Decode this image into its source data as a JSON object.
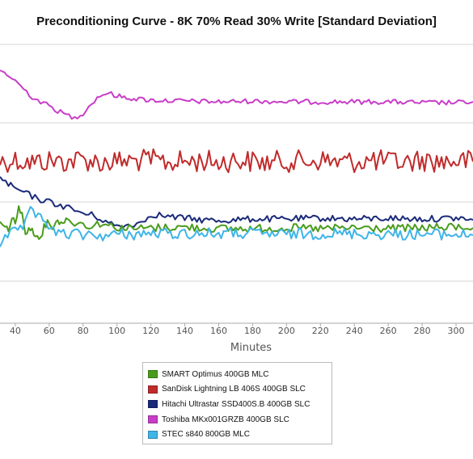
{
  "chart_data": {
    "type": "line",
    "title": "Preconditioning Curve - 8K 70% Read 30% Write [Standard Deviation]",
    "xlabel": "Minutes",
    "ylabel": "",
    "x_ticks": [
      40,
      60,
      80,
      100,
      120,
      140,
      160,
      180,
      200,
      220,
      240,
      260,
      280,
      300
    ],
    "xlim": [
      31,
      310
    ],
    "grid": "horizontal",
    "legend_position": "bottom",
    "series": [
      {
        "name": "SMART Optimus 400GB MLC",
        "color": "#4a9c1c",
        "x": [
          31,
          34,
          36,
          38,
          40,
          42,
          44,
          46,
          48,
          50,
          52,
          54,
          56,
          58,
          60,
          62,
          64,
          66,
          68,
          70,
          75,
          80,
          85,
          90,
          95,
          100,
          110,
          120,
          140,
          160,
          180,
          200,
          220,
          240,
          260,
          280,
          300,
          310
        ],
        "y": [
          275,
          283,
          282,
          272,
          275,
          255,
          268,
          290,
          278,
          286,
          293,
          291,
          287,
          277,
          275,
          280,
          276,
          273,
          274,
          273,
          275,
          277,
          280,
          276,
          279,
          281,
          283,
          282,
          281,
          283,
          283,
          282,
          283,
          282,
          283,
          282,
          281,
          282
        ]
      },
      {
        "name": "SanDisk Lightning LB 406S 400GB SLC",
        "color": "#c02b2b",
        "x": [
          31,
          40,
          50,
          60,
          70,
          80,
          90,
          100,
          110,
          120,
          130,
          140,
          150,
          160,
          170,
          180,
          190,
          200,
          210,
          220,
          230,
          240,
          250,
          260,
          270,
          280,
          290,
          300,
          310
        ],
        "y": [
          200,
          198,
          201,
          199,
          200,
          197,
          201,
          200,
          199,
          198,
          201,
          200,
          199,
          201,
          198,
          200,
          201,
          199,
          200,
          198,
          201,
          200,
          199,
          200,
          201,
          198,
          200,
          199,
          200
        ]
      },
      {
        "name": "Hitachi Ultrastar SSD400S.B 400GB SLC",
        "color": "#1a2a7a",
        "x": [
          31,
          36,
          40,
          45,
          50,
          55,
          60,
          65,
          70,
          75,
          80,
          85,
          90,
          95,
          100,
          105,
          110,
          115,
          120,
          125,
          130,
          140,
          150,
          160,
          170,
          180,
          200,
          220,
          240,
          260,
          280,
          300,
          310
        ],
        "y": [
          221,
          228,
          234,
          238,
          243,
          247,
          250,
          253,
          256,
          260,
          264,
          266,
          270,
          276,
          280,
          279,
          277,
          275,
          265,
          266,
          268,
          270,
          272,
          273,
          272,
          271,
          271,
          270,
          271,
          270,
          271,
          270,
          272
        ]
      },
      {
        "name": "Toshiba MKx001GRZB 400GB SLC",
        "color": "#c83dc8",
        "x": [
          31,
          35,
          40,
          45,
          50,
          55,
          60,
          65,
          70,
          75,
          80,
          85,
          90,
          95,
          100,
          110,
          120,
          140,
          160,
          180,
          200,
          220,
          240,
          260,
          280,
          300,
          310
        ],
        "y": [
          87,
          92,
          100,
          110,
          120,
          126,
          131,
          137,
          142,
          146,
          140,
          128,
          118,
          115,
          119,
          122,
          124,
          125,
          126,
          125,
          126,
          126,
          126,
          126,
          127,
          127,
          126
        ]
      },
      {
        "name": "STEC s840 800GB MLC",
        "color": "#3fb5e8",
        "x": [
          31,
          34,
          37,
          40,
          43,
          46,
          49,
          52,
          55,
          58,
          61,
          64,
          67,
          70,
          75,
          80,
          85,
          90,
          95,
          100,
          110,
          120,
          140,
          160,
          180,
          200,
          220,
          240,
          260,
          280,
          300,
          310
        ],
        "y": [
          300,
          297,
          290,
          287,
          283,
          278,
          262,
          268,
          262,
          275,
          286,
          288,
          290,
          289,
          290,
          291,
          290,
          291,
          292,
          290,
          290,
          289,
          289,
          289,
          289,
          290,
          289,
          289,
          290,
          290,
          290,
          291
        ]
      }
    ]
  }
}
